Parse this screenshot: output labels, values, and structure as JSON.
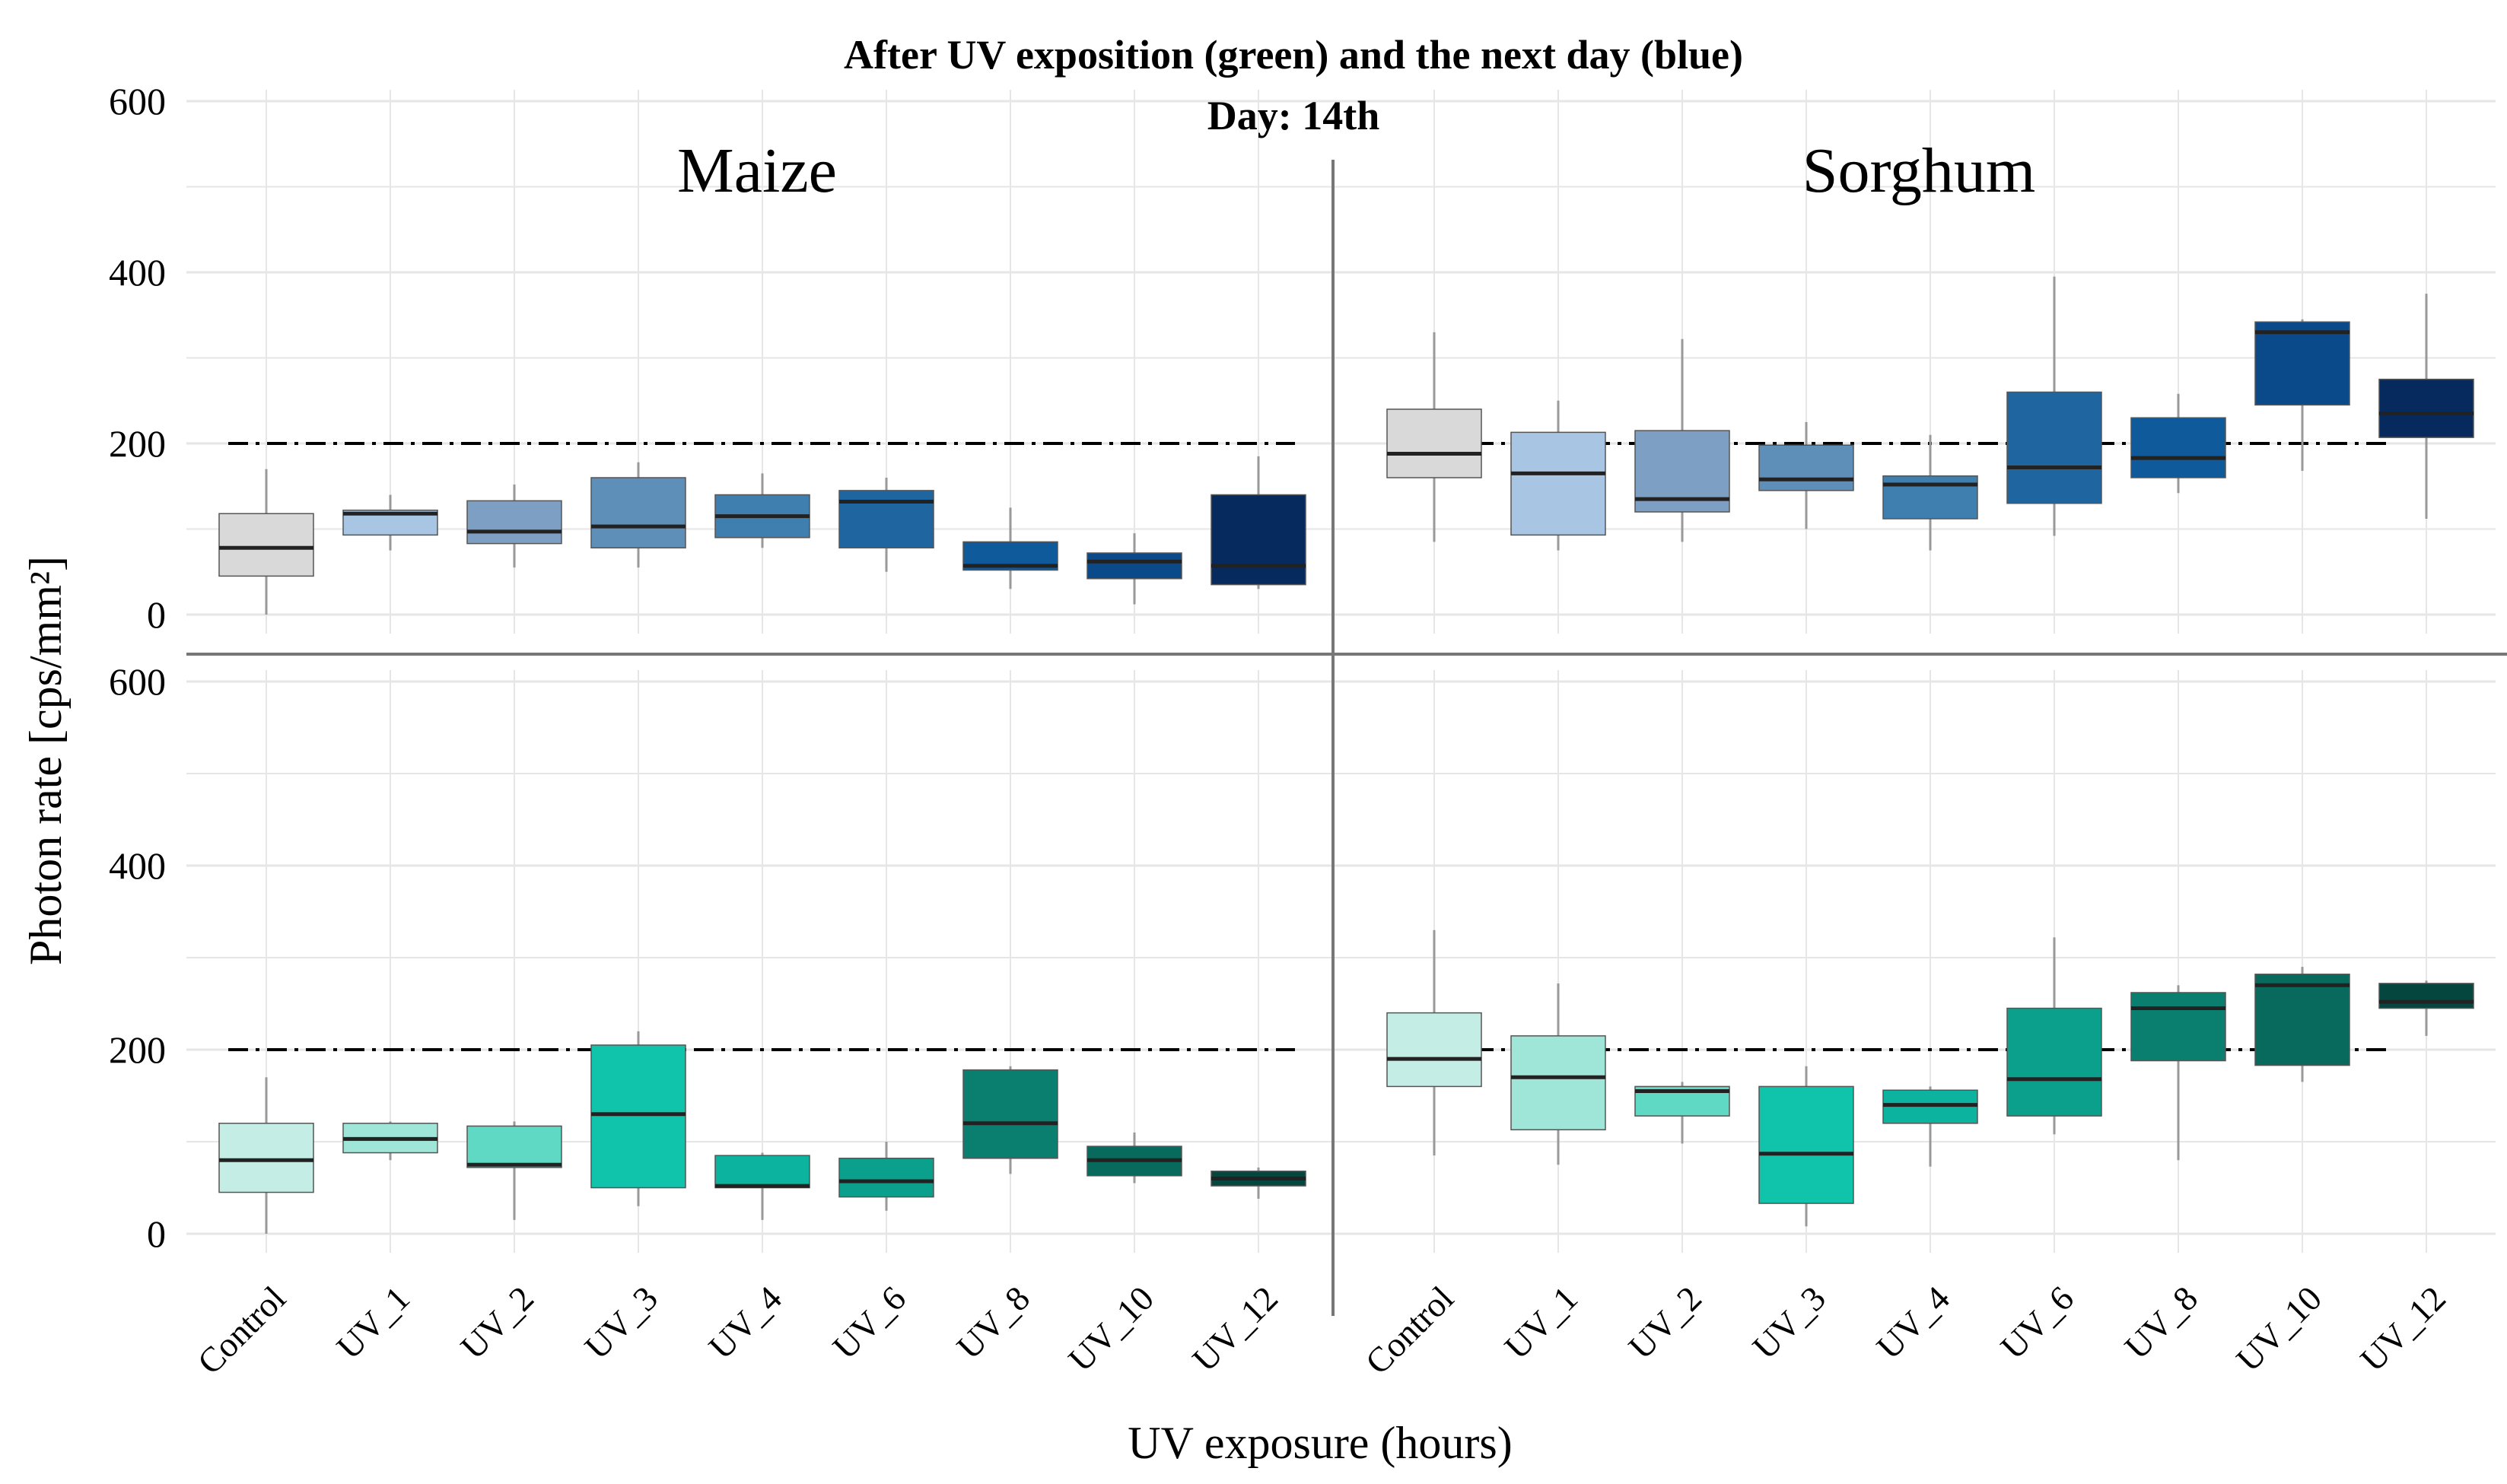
{
  "chart_data": {
    "type": "boxplot",
    "title": "After UV exposition (green) and the next day (blue)",
    "subtitle": "Day: 14th",
    "xlabel": "UV exposure (hours)",
    "ylabel": "Photon rate [cps/mm²]",
    "ylim": [
      0,
      600
    ],
    "yticks": [
      "0",
      "200",
      "400",
      "600"
    ],
    "categories": [
      "Control",
      "UV_1",
      "UV_2",
      "UV_3",
      "UV_4",
      "UV_6",
      "UV_8",
      "UV_10",
      "UV_12"
    ],
    "reference_line": 200,
    "grid": true,
    "panels": [
      {
        "name": "Maize",
        "row": "top",
        "series": "next day (blue)",
        "colors": [
          "#d9d9d9",
          "#a8c6e4",
          "#7d9fc4",
          "#5e8fb9",
          "#3f7fb0",
          "#1f65a0",
          "#0f5a9a",
          "#0a4a8a",
          "#062a5e"
        ],
        "boxes": [
          {
            "whisker_low": 0,
            "q1": 45,
            "median": 78,
            "q3": 118,
            "whisker_high": 170
          },
          {
            "whisker_low": 75,
            "q1": 93,
            "median": 118,
            "q3": 122,
            "whisker_high": 140
          },
          {
            "whisker_low": 55,
            "q1": 83,
            "median": 97,
            "q3": 133,
            "whisker_high": 152
          },
          {
            "whisker_low": 55,
            "q1": 78,
            "median": 103,
            "q3": 160,
            "whisker_high": 178
          },
          {
            "whisker_low": 78,
            "q1": 90,
            "median": 115,
            "q3": 140,
            "whisker_high": 165
          },
          {
            "whisker_low": 50,
            "q1": 78,
            "median": 132,
            "q3": 145,
            "whisker_high": 160
          },
          {
            "whisker_low": 30,
            "q1": 52,
            "median": 57,
            "q3": 85,
            "whisker_high": 125
          },
          {
            "whisker_low": 12,
            "q1": 42,
            "median": 62,
            "q3": 72,
            "whisker_high": 95
          },
          {
            "whisker_low": 30,
            "q1": 35,
            "median": 57,
            "q3": 140,
            "whisker_high": 185
          }
        ]
      },
      {
        "name": "Sorghum",
        "row": "top",
        "series": "next day (blue)",
        "colors": [
          "#d9d9d9",
          "#a8c6e4",
          "#7d9fc4",
          "#5e8fb9",
          "#3f7fb0",
          "#1f65a0",
          "#0f5a9a",
          "#0a4a8a",
          "#062a5e"
        ],
        "boxes": [
          {
            "whisker_low": 85,
            "q1": 160,
            "median": 188,
            "q3": 240,
            "whisker_high": 330
          },
          {
            "whisker_low": 75,
            "q1": 93,
            "median": 165,
            "q3": 213,
            "whisker_high": 250
          },
          {
            "whisker_low": 85,
            "q1": 120,
            "median": 135,
            "q3": 215,
            "whisker_high": 322
          },
          {
            "whisker_low": 100,
            "q1": 145,
            "median": 158,
            "q3": 198,
            "whisker_high": 225
          },
          {
            "whisker_low": 75,
            "q1": 112,
            "median": 152,
            "q3": 162,
            "whisker_high": 210
          },
          {
            "whisker_low": 92,
            "q1": 130,
            "median": 172,
            "q3": 260,
            "whisker_high": 395
          },
          {
            "whisker_low": 142,
            "q1": 160,
            "median": 183,
            "q3": 230,
            "whisker_high": 258
          },
          {
            "whisker_low": 168,
            "q1": 245,
            "median": 330,
            "q3": 342,
            "whisker_high": 345
          },
          {
            "whisker_low": 112,
            "q1": 207,
            "median": 235,
            "q3": 275,
            "whisker_high": 375
          }
        ]
      },
      {
        "name": "Maize",
        "row": "bottom",
        "series": "after UV (green)",
        "colors": [
          "#c4eee5",
          "#a0e6d8",
          "#5fd8c4",
          "#10c4ac",
          "#0cb4a0",
          "#0aa08c",
          "#0a7f70",
          "#086a5c",
          "#05473f"
        ],
        "boxes": [
          {
            "whisker_low": 0,
            "q1": 45,
            "median": 80,
            "q3": 120,
            "whisker_high": 170
          },
          {
            "whisker_low": 80,
            "q1": 88,
            "median": 103,
            "q3": 120,
            "whisker_high": 122
          },
          {
            "whisker_low": 15,
            "q1": 72,
            "median": 75,
            "q3": 117,
            "whisker_high": 122
          },
          {
            "whisker_low": 30,
            "q1": 50,
            "median": 130,
            "q3": 205,
            "whisker_high": 220
          },
          {
            "whisker_low": 15,
            "q1": 50,
            "median": 52,
            "q3": 85,
            "whisker_high": 88
          },
          {
            "whisker_low": 25,
            "q1": 40,
            "median": 57,
            "q3": 82,
            "whisker_high": 100
          },
          {
            "whisker_low": 65,
            "q1": 82,
            "median": 120,
            "q3": 178,
            "whisker_high": 182
          },
          {
            "whisker_low": 55,
            "q1": 63,
            "median": 80,
            "q3": 95,
            "whisker_high": 110
          },
          {
            "whisker_low": 38,
            "q1": 52,
            "median": 60,
            "q3": 68,
            "whisker_high": 72
          }
        ]
      },
      {
        "name": "Sorghum",
        "row": "bottom",
        "series": "after UV (green)",
        "colors": [
          "#c4eee5",
          "#a0e6d8",
          "#5fd8c4",
          "#10c4ac",
          "#0cb4a0",
          "#0aa08c",
          "#0a7f70",
          "#086a5c",
          "#05473f"
        ],
        "boxes": [
          {
            "whisker_low": 85,
            "q1": 160,
            "median": 190,
            "q3": 240,
            "whisker_high": 330
          },
          {
            "whisker_low": 75,
            "q1": 113,
            "median": 170,
            "q3": 215,
            "whisker_high": 272
          },
          {
            "whisker_low": 98,
            "q1": 128,
            "median": 155,
            "q3": 160,
            "whisker_high": 165
          },
          {
            "whisker_low": 8,
            "q1": 33,
            "median": 87,
            "q3": 160,
            "whisker_high": 182
          },
          {
            "whisker_low": 73,
            "q1": 120,
            "median": 140,
            "q3": 156,
            "whisker_high": 160
          },
          {
            "whisker_low": 108,
            "q1": 128,
            "median": 168,
            "q3": 245,
            "whisker_high": 322
          },
          {
            "whisker_low": 80,
            "q1": 188,
            "median": 245,
            "q3": 262,
            "whisker_high": 270
          },
          {
            "whisker_low": 165,
            "q1": 183,
            "median": 270,
            "q3": 282,
            "whisker_high": 290
          },
          {
            "whisker_low": 215,
            "q1": 245,
            "median": 252,
            "q3": 272,
            "whisker_high": 275
          }
        ]
      }
    ]
  },
  "colors": {
    "whisker": "#999999",
    "median": "#222222",
    "grid": "#e6e6e6",
    "divider": "#777777",
    "refline": "#000000"
  }
}
